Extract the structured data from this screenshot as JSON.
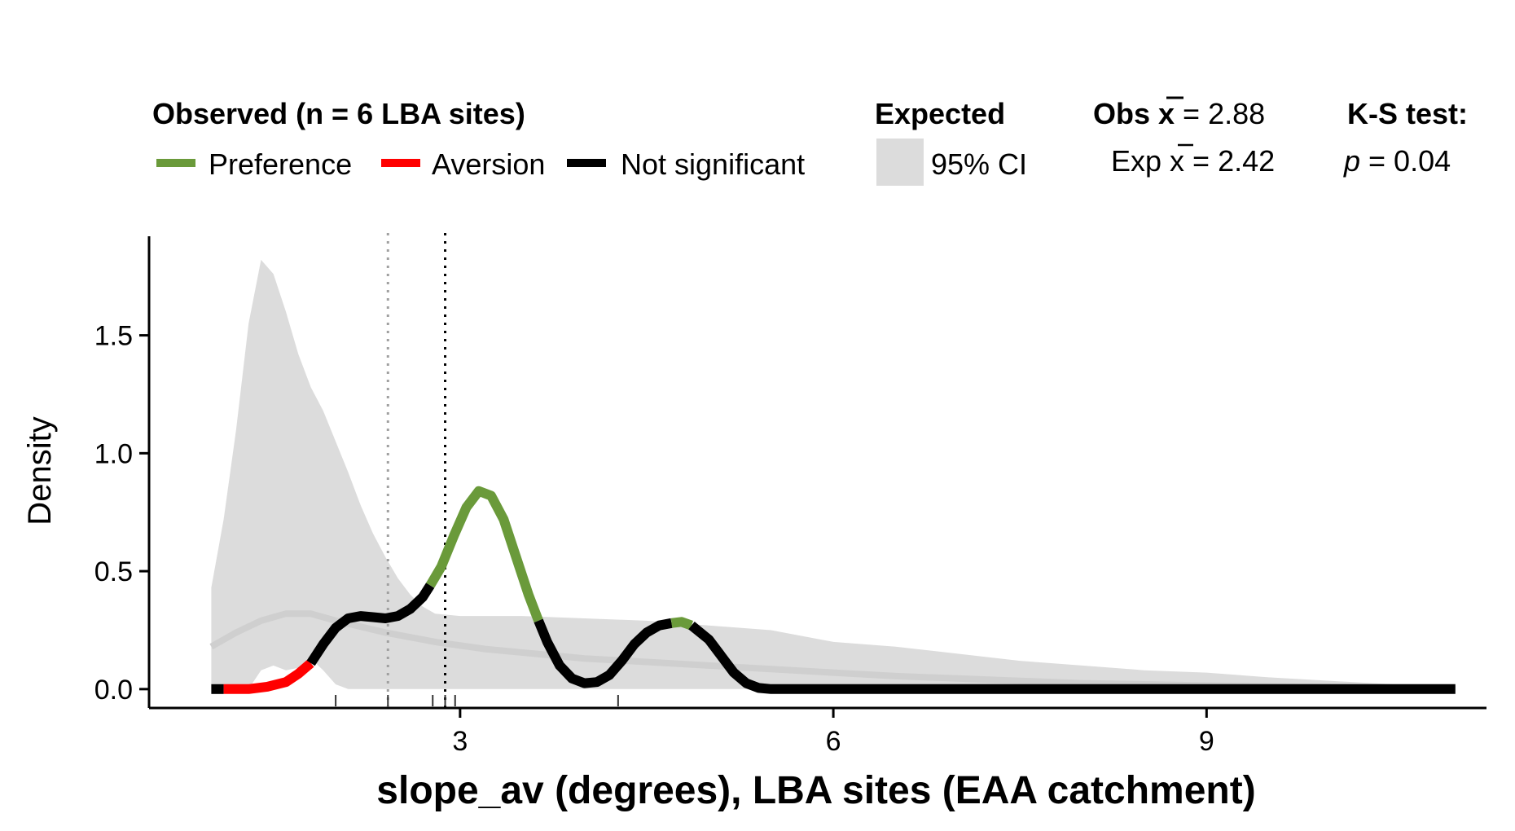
{
  "legend": {
    "observed_title": "Observed (n = 6 LBA sites)",
    "preference_label": "Preference",
    "aversion_label": "Aversion",
    "not_significant_label": "Not significant",
    "expected_title": "Expected",
    "ci_label": "95% CI",
    "obs_mean_prefix": "Obs ",
    "obs_mean_symbol": "x",
    "obs_mean_value": " = 2.88",
    "exp_mean_prefix": "Exp ",
    "exp_mean_symbol": "x",
    "exp_mean_value": " = 2.42",
    "ks_title": "K-S test:",
    "ks_p_symbol": "p",
    "ks_p_value": " = 0.04"
  },
  "colors": {
    "preference": "#6a9a3a",
    "aversion": "#ff0000",
    "not_significant": "#000000",
    "ci_fill": "#dcdcdc",
    "expected_line": "#cfcfcf",
    "exp_mean_line": "#a0a0a0",
    "obs_mean_line": "#000000"
  },
  "chart_data": {
    "type": "area",
    "xlabel": "slope_av (degrees), LBA sites (EAA catchment)",
    "ylabel": "Density",
    "xlim": [
      0.5,
      11.25
    ],
    "ylim": [
      -0.08,
      1.92
    ],
    "x_ticks": [
      3,
      6,
      9
    ],
    "y_ticks": [
      0.0,
      0.5,
      1.0,
      1.5
    ],
    "y_tick_labels": [
      "0.0",
      "0.5",
      "1.0",
      "1.5"
    ],
    "obs_mean": 2.88,
    "exp_mean": 2.42,
    "rug": [
      2.0,
      2.42,
      2.78,
      2.88,
      2.96,
      4.27
    ],
    "ci_upper": [
      [
        1.0,
        0.43
      ],
      [
        1.1,
        0.72
      ],
      [
        1.2,
        1.1
      ],
      [
        1.3,
        1.55
      ],
      [
        1.4,
        1.82
      ],
      [
        1.5,
        1.76
      ],
      [
        1.6,
        1.6
      ],
      [
        1.7,
        1.42
      ],
      [
        1.8,
        1.28
      ],
      [
        1.9,
        1.18
      ],
      [
        2.0,
        1.05
      ],
      [
        2.1,
        0.92
      ],
      [
        2.2,
        0.78
      ],
      [
        2.3,
        0.66
      ],
      [
        2.4,
        0.56
      ],
      [
        2.5,
        0.47
      ],
      [
        2.6,
        0.4
      ],
      [
        2.7,
        0.35
      ],
      [
        2.8,
        0.32
      ],
      [
        3.0,
        0.31
      ],
      [
        3.5,
        0.31
      ],
      [
        4.0,
        0.3
      ],
      [
        4.5,
        0.29
      ],
      [
        5.0,
        0.27
      ],
      [
        5.5,
        0.25
      ],
      [
        6.0,
        0.2
      ],
      [
        6.5,
        0.18
      ],
      [
        7.0,
        0.15
      ],
      [
        7.5,
        0.12
      ],
      [
        8.0,
        0.1
      ],
      [
        8.5,
        0.08
      ],
      [
        9.0,
        0.07
      ],
      [
        9.5,
        0.05
      ],
      [
        10.0,
        0.035
      ],
      [
        10.5,
        0.02
      ],
      [
        11.0,
        0.0
      ]
    ],
    "ci_lower": [
      [
        1.0,
        0.0
      ],
      [
        1.3,
        0.0
      ],
      [
        1.4,
        0.08
      ],
      [
        1.5,
        0.1
      ],
      [
        1.6,
        0.08
      ],
      [
        1.7,
        0.09
      ],
      [
        1.8,
        0.13
      ],
      [
        1.9,
        0.08
      ],
      [
        2.0,
        0.02
      ],
      [
        2.1,
        0.0
      ],
      [
        11.0,
        0.0
      ]
    ],
    "expected_mean_curve": [
      [
        1.0,
        0.18
      ],
      [
        1.2,
        0.24
      ],
      [
        1.4,
        0.29
      ],
      [
        1.6,
        0.32
      ],
      [
        1.8,
        0.32
      ],
      [
        2.0,
        0.29
      ],
      [
        2.4,
        0.24
      ],
      [
        2.8,
        0.2
      ],
      [
        3.2,
        0.17
      ],
      [
        3.6,
        0.15
      ],
      [
        4.0,
        0.13
      ],
      [
        4.5,
        0.115
      ],
      [
        5.0,
        0.1
      ],
      [
        5.5,
        0.085
      ],
      [
        6.0,
        0.07
      ],
      [
        6.5,
        0.055
      ],
      [
        7.0,
        0.045
      ],
      [
        7.5,
        0.035
      ],
      [
        8.0,
        0.025
      ],
      [
        8.5,
        0.02
      ],
      [
        9.0,
        0.015
      ],
      [
        10.0,
        0.008
      ],
      [
        11.0,
        0.0
      ]
    ],
    "series": [
      {
        "name": "Not significant",
        "class": "not_significant",
        "points": [
          [
            1.0,
            0.0
          ],
          [
            1.1,
            0.0
          ]
        ]
      },
      {
        "name": "Aversion",
        "class": "aversion",
        "points": [
          [
            1.1,
            0.0
          ],
          [
            1.3,
            0.0
          ],
          [
            1.45,
            0.01
          ],
          [
            1.6,
            0.03
          ],
          [
            1.7,
            0.065
          ],
          [
            1.8,
            0.11
          ]
        ]
      },
      {
        "name": "Not significant",
        "class": "not_significant",
        "points": [
          [
            1.8,
            0.11
          ],
          [
            1.9,
            0.19
          ],
          [
            2.0,
            0.26
          ],
          [
            2.1,
            0.3
          ],
          [
            2.2,
            0.31
          ],
          [
            2.3,
            0.305
          ],
          [
            2.4,
            0.3
          ],
          [
            2.5,
            0.31
          ],
          [
            2.6,
            0.34
          ],
          [
            2.7,
            0.39
          ],
          [
            2.76,
            0.44
          ]
        ]
      },
      {
        "name": "Preference",
        "class": "preference",
        "points": [
          [
            2.76,
            0.44
          ],
          [
            2.85,
            0.52
          ],
          [
            2.95,
            0.65
          ],
          [
            3.05,
            0.77
          ],
          [
            3.15,
            0.84
          ],
          [
            3.25,
            0.82
          ],
          [
            3.35,
            0.72
          ],
          [
            3.45,
            0.56
          ],
          [
            3.55,
            0.4
          ],
          [
            3.63,
            0.29
          ]
        ]
      },
      {
        "name": "Not significant",
        "class": "not_significant",
        "points": [
          [
            3.63,
            0.29
          ],
          [
            3.7,
            0.2
          ],
          [
            3.8,
            0.1
          ],
          [
            3.9,
            0.045
          ],
          [
            4.0,
            0.025
          ],
          [
            4.1,
            0.03
          ],
          [
            4.2,
            0.06
          ],
          [
            4.3,
            0.12
          ],
          [
            4.4,
            0.19
          ],
          [
            4.5,
            0.24
          ],
          [
            4.6,
            0.27
          ],
          [
            4.7,
            0.28
          ]
        ]
      },
      {
        "name": "Preference",
        "class": "preference",
        "points": [
          [
            4.7,
            0.28
          ],
          [
            4.78,
            0.285
          ],
          [
            4.86,
            0.27
          ]
        ]
      },
      {
        "name": "Not significant",
        "class": "not_significant",
        "points": [
          [
            4.86,
            0.27
          ],
          [
            5.0,
            0.21
          ],
          [
            5.1,
            0.14
          ],
          [
            5.2,
            0.07
          ],
          [
            5.3,
            0.025
          ],
          [
            5.4,
            0.005
          ],
          [
            5.5,
            0.0
          ],
          [
            11.0,
            0.0
          ]
        ]
      }
    ]
  }
}
